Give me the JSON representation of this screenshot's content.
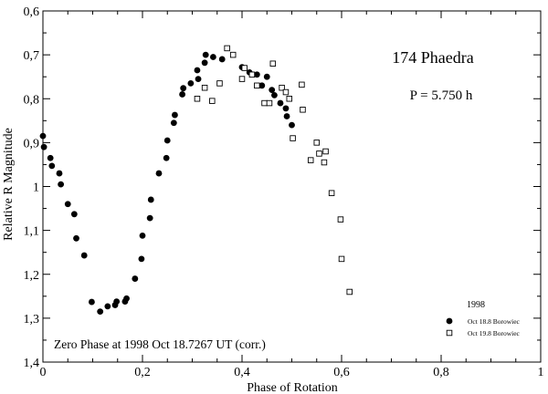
{
  "chart_data": {
    "type": "scatter",
    "title": "174 Phaedra",
    "period_label": "P = 5.750 h",
    "xlabel": "Phase of Rotation",
    "ylabel": "Relative R Magnitude",
    "annotation": "Zero Phase at 1998 Oct 18.7267 UT (corr.)",
    "legend_title": "1998",
    "legend_position": "bottom-right",
    "xlim": [
      0,
      1
    ],
    "ylim": [
      1.4,
      0.6
    ],
    "y_inverted": true,
    "x_ticks": [
      {
        "value": 0,
        "label": "0"
      },
      {
        "value": 0.2,
        "label": "0,2"
      },
      {
        "value": 0.4,
        "label": "0,4"
      },
      {
        "value": 0.6,
        "label": "0,6"
      },
      {
        "value": 0.8,
        "label": "0,8"
      },
      {
        "value": 1.0,
        "label": "1"
      }
    ],
    "y_ticks": [
      {
        "value": 0.6,
        "label": "0,6"
      },
      {
        "value": 0.7,
        "label": "0,7"
      },
      {
        "value": 0.8,
        "label": "0,8"
      },
      {
        "value": 0.9,
        "label": "0,9"
      },
      {
        "value": 1.0,
        "label": "1"
      },
      {
        "value": 1.1,
        "label": "1,1"
      },
      {
        "value": 1.2,
        "label": "1,2"
      },
      {
        "value": 1.3,
        "label": "1,3"
      },
      {
        "value": 1.4,
        "label": "1,4"
      }
    ],
    "series": [
      {
        "name": "Oct 18.8 Borowiec",
        "marker": "filled-circle",
        "color": "#000000",
        "x": [
          0.0,
          0.002,
          0.015,
          0.018,
          0.033,
          0.036,
          0.05,
          0.063,
          0.067,
          0.083,
          0.098,
          0.115,
          0.13,
          0.145,
          0.148,
          0.165,
          0.168,
          0.185,
          0.198,
          0.2,
          0.215,
          0.217,
          0.233,
          0.248,
          0.25,
          0.263,
          0.265,
          0.28,
          0.282,
          0.297,
          0.31,
          0.312,
          0.325,
          0.327,
          0.342,
          0.36,
          0.4,
          0.415,
          0.43,
          0.44,
          0.45,
          0.46,
          0.465,
          0.477,
          0.488,
          0.49,
          0.5
        ],
        "y": [
          0.885,
          0.91,
          0.935,
          0.953,
          0.97,
          0.995,
          1.04,
          1.063,
          1.118,
          1.157,
          1.263,
          1.285,
          1.273,
          1.27,
          1.262,
          1.262,
          1.255,
          1.21,
          1.165,
          1.112,
          1.072,
          1.03,
          0.97,
          0.935,
          0.895,
          0.855,
          0.837,
          0.79,
          0.776,
          0.765,
          0.735,
          0.755,
          0.718,
          0.7,
          0.705,
          0.71,
          0.728,
          0.74,
          0.745,
          0.77,
          0.75,
          0.78,
          0.792,
          0.81,
          0.822,
          0.84,
          0.86
        ]
      },
      {
        "name": "Oct 19.8 Borowiec",
        "marker": "open-square",
        "color": "#000000",
        "x": [
          0.31,
          0.325,
          0.34,
          0.355,
          0.37,
          0.382,
          0.4,
          0.405,
          0.42,
          0.43,
          0.445,
          0.455,
          0.462,
          0.48,
          0.488,
          0.495,
          0.502,
          0.52,
          0.522,
          0.538,
          0.55,
          0.555,
          0.565,
          0.568,
          0.58,
          0.598,
          0.6,
          0.616
        ],
        "y": [
          0.8,
          0.775,
          0.805,
          0.765,
          0.685,
          0.7,
          0.755,
          0.73,
          0.745,
          0.77,
          0.81,
          0.81,
          0.72,
          0.775,
          0.785,
          0.8,
          0.89,
          0.768,
          0.825,
          0.94,
          0.9,
          0.925,
          0.945,
          0.92,
          1.015,
          1.075,
          1.165,
          1.24
        ]
      }
    ]
  }
}
